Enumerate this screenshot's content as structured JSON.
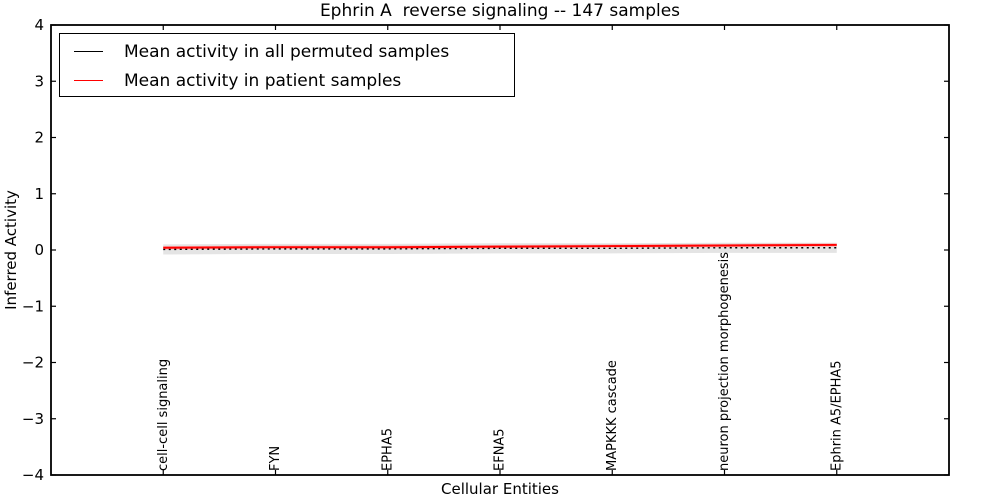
{
  "chart_data": {
    "type": "line",
    "title": "Ephrin A  reverse signaling -- 147 samples",
    "xlabel": "Cellular Entities",
    "ylabel": "Inferred Activity",
    "xlim": [
      -1,
      7
    ],
    "ylim": [
      -4,
      4
    ],
    "yticks": [
      -4,
      -3,
      -2,
      -1,
      0,
      1,
      2,
      3,
      4
    ],
    "grid": false,
    "legend_position": "upper left",
    "categories": [
      "cell-cell signaling",
      "FYN",
      "EPHA5",
      "EFNA5",
      "MAPKKK cascade",
      "neuron projection morphogenesis",
      "Ephrin A5/EPHA5"
    ],
    "series": [
      {
        "name": "Mean activity in all permuted samples",
        "color": "#000000",
        "line_style": "dashed",
        "values": [
          0.01,
          0.02,
          0.02,
          0.03,
          0.03,
          0.04,
          0.04
        ],
        "band_halfwidth": 0.09,
        "band_color": "#e4e4e4"
      },
      {
        "name": "Mean activity in patient samples",
        "color": "#ff0000",
        "line_style": "solid",
        "values": [
          0.04,
          0.05,
          0.05,
          0.06,
          0.07,
          0.08,
          0.09
        ],
        "band_halfwidth": 0.03,
        "band_color": "#f6b6b6"
      }
    ],
    "colors": {
      "axes": "#000000",
      "background": "#ffffff",
      "tick_labels": "#000000"
    }
  }
}
